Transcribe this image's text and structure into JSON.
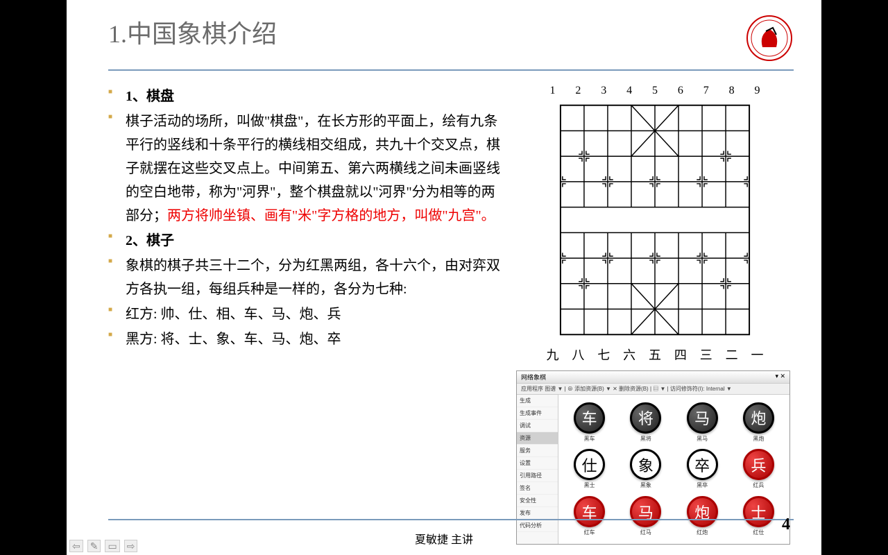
{
  "slide": {
    "title": "1.中国象棋介绍",
    "footer": "夏敏捷 主讲",
    "page_number": "4"
  },
  "bullets": [
    {
      "text": "1、棋盘",
      "bold": true
    },
    {
      "text": "棋子活动的场所，叫做\"棋盘\"，在长方形的平面上，绘有九条平行的竖线和十条平行的横线相交组成，共九十个交叉点，棋子就摆在这些交叉点上。中间第五、第六两横线之间未画竖线的空白地带，称为\"河界\"，整个棋盘就以\"河界\"分为相等的两部分；",
      "red_suffix": "两方将帅坐镇、画有\"米\"字方格的地方，叫做\"九宫\"。"
    },
    {
      "text": "2、棋子",
      "bold": true
    },
    {
      "text": "象棋的棋子共三十二个，分为红黑两组，各十六个，由对弈双方各执一组，每组兵种是一样的，各分为七种:"
    },
    {
      "text": " 红方: 帅、仕、相、车、马、炮、兵"
    },
    {
      "text": " 黑方: 将、士、象、车、马、炮、卒"
    }
  ],
  "board": {
    "top_numbers": [
      "1",
      "2",
      "3",
      "4",
      "5",
      "6",
      "7",
      "8",
      "9"
    ],
    "bottom_numbers": [
      "九",
      "八",
      "七",
      "六",
      "五",
      "四",
      "三",
      "二",
      "一"
    ]
  },
  "app": {
    "title": "网络象棋",
    "toolbar": "应用程序    图谱 ▼ | ⊕ 添加资源(B) ▼ ✕ 删除资源(B) | ▤ ▼ | 访问修饰符(I): Internal        ▼",
    "sidebar": [
      "生成",
      "生成事件",
      "调试",
      "资源",
      "服务",
      "设置",
      "引用路径",
      "签名",
      "安全性",
      "发布",
      "代码分析"
    ],
    "sidebar_selected": 3,
    "pieces": [
      {
        "char": "车",
        "style": "black",
        "label": "黑车"
      },
      {
        "char": "将",
        "style": "black",
        "label": "黑将"
      },
      {
        "char": "马",
        "style": "black",
        "label": "黑马"
      },
      {
        "char": "炮",
        "style": "black",
        "label": "黑炮"
      },
      {
        "char": "仕",
        "style": "black-outline",
        "label": "黑士"
      },
      {
        "char": "象",
        "style": "black-outline",
        "label": "黑象"
      },
      {
        "char": "卒",
        "style": "black-outline",
        "label": "黑卒"
      },
      {
        "char": "兵",
        "style": "red",
        "label": "红兵"
      },
      {
        "char": "车",
        "style": "red",
        "label": "红车"
      },
      {
        "char": "马",
        "style": "red",
        "label": "红马"
      },
      {
        "char": "炮",
        "style": "red",
        "label": "红炮"
      },
      {
        "char": "士",
        "style": "red",
        "label": "红仕"
      }
    ]
  },
  "colors": {
    "accent_line": "#7a9abb",
    "bullet": "#d4a94a",
    "title": "#6b6b6b",
    "red_text": "#ee0000"
  }
}
